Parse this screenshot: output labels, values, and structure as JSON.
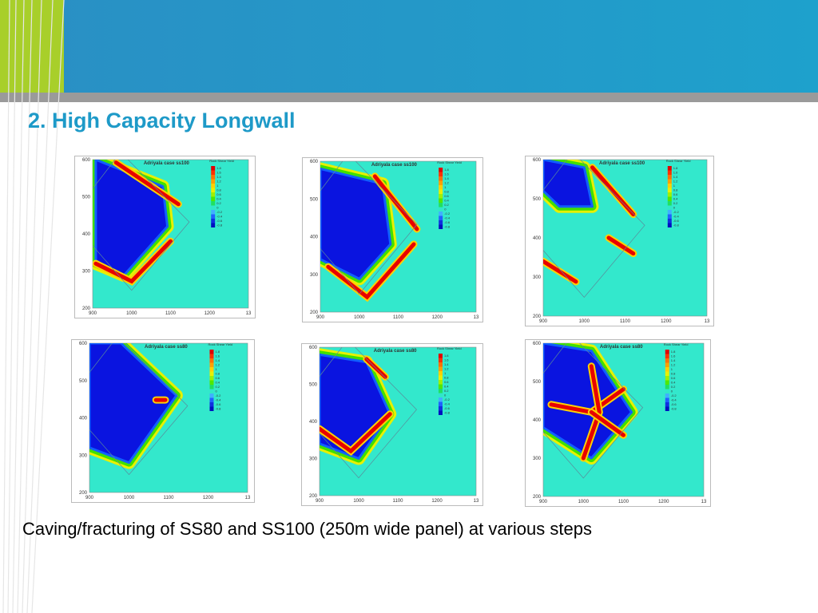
{
  "header": {
    "title": "2.  High Capacity Longwall"
  },
  "legend": {
    "title": "Rock Shear Yield",
    "levels": [
      "1.8",
      "1.6",
      "1.4",
      "1.2",
      "1",
      "0.8",
      "0.6",
      "0.4",
      "0.2",
      "0",
      "-0.2",
      "-0.4",
      "-0.6",
      "-0.8"
    ]
  },
  "panels": [
    {
      "title": "Adriyala case ss100",
      "x_ticks": [
        "900",
        "1000",
        "1100",
        "1200",
        "13"
      ],
      "y_ticks": [
        "200",
        "300",
        "400",
        "500",
        "600"
      ]
    },
    {
      "title": "Adriyala case ss100",
      "x_ticks": [
        "900",
        "1000",
        "1100",
        "1200",
        "13"
      ],
      "y_ticks": [
        "200",
        "300",
        "400",
        "500",
        "600"
      ]
    },
    {
      "title": "Adriyala case ss100",
      "x_ticks": [
        "900",
        "1000",
        "1100",
        "1200",
        "13"
      ],
      "y_ticks": [
        "200",
        "300",
        "400",
        "500",
        "600"
      ]
    },
    {
      "title": "Adriyala case ss80",
      "x_ticks": [
        "900",
        "1000",
        "1100",
        "1200",
        "13"
      ],
      "y_ticks": [
        "200",
        "300",
        "400",
        "500",
        "600"
      ]
    },
    {
      "title": "Adriyala case ss80",
      "x_ticks": [
        "900",
        "1000",
        "1100",
        "1200",
        "13"
      ],
      "y_ticks": [
        "200",
        "300",
        "400",
        "500",
        "600"
      ]
    },
    {
      "title": "Adriyala case ss80",
      "x_ticks": [
        "900",
        "1000",
        "1100",
        "1200",
        "13"
      ],
      "y_ticks": [
        "200",
        "300",
        "400",
        "500",
        "600"
      ]
    }
  ],
  "caption": "Caving/fracturing of SS80 and SS100 (250m wide panel) at various steps"
}
